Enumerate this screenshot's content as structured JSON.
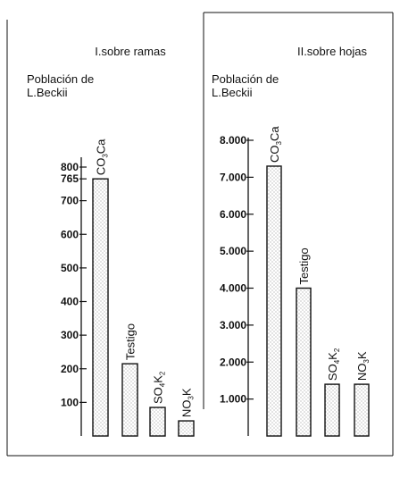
{
  "chart_data": [
    {
      "type": "bar",
      "title": "I.sobre ramas",
      "ylabel_lines": [
        "Población de",
        "L.Beckii"
      ],
      "yticks": [
        800,
        700,
        600,
        500,
        400,
        300,
        200,
        100
      ],
      "ytick_labels": [
        "800",
        "700",
        "600",
        "500",
        "400",
        "300",
        "200",
        "100"
      ],
      "extra_tick": {
        "value": 765,
        "label": "765"
      },
      "ylim": [
        0,
        800
      ],
      "categories": [
        "CO3Ca",
        "Testigo",
        "SO4K2",
        "NO3K"
      ],
      "values": [
        765,
        215,
        85,
        45
      ]
    },
    {
      "type": "bar",
      "title": "II.sobre hojas",
      "ylabel_lines": [
        "Población de",
        "L.Beckii"
      ],
      "yticks": [
        8000,
        7000,
        6000,
        5000,
        4000,
        3000,
        2000,
        1000
      ],
      "ytick_labels": [
        "8.000",
        "7.000",
        "6.000",
        "5.000",
        "4.000",
        "3.000",
        "2.000",
        "1.000"
      ],
      "ylim": [
        0,
        8000
      ],
      "categories": [
        "CO3Ca",
        "Testigo",
        "SO4K2",
        "NO3K"
      ],
      "values": [
        7300,
        4000,
        1400,
        1400
      ]
    }
  ],
  "colors": {
    "ink": "#111111",
    "dots": "#777777"
  }
}
